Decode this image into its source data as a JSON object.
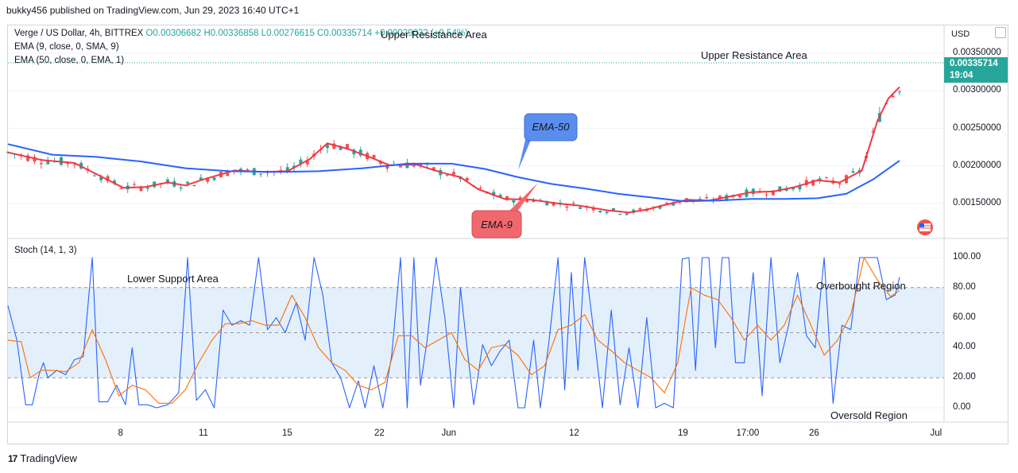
{
  "header": {
    "published": "bukky456 published on TradingView.com, Jun 29, 2023 16:40 UTC+1"
  },
  "legend": {
    "symbol": "Verge / US Dollar, 4h, BITTREX",
    "ohlc": "O0.00306682 H0.00336858 L0.00276615 C0.00335714 +0.00029032 (+9.54%)",
    "ema9": "EMA (9, close, 0, SMA, 9)",
    "ema50": "EMA (50, close, 0, EMA, 1)",
    "stoch": "Stoch (14, 1, 3)"
  },
  "annotations": {
    "upper_resistance_1": "Upper Resistance Area",
    "upper_resistance_2": "Upper Resistance Area",
    "lower_support": "Lower Support Area",
    "overbought": "Overbought Region",
    "oversold": "Oversold Region",
    "callout_ema50": "EMA-50",
    "callout_ema9": "EMA-9"
  },
  "price_axis": {
    "currency": "USD",
    "ticks": [
      "0.00350000",
      "0.00300000",
      "0.00250000",
      "0.00200000",
      "0.00150000"
    ],
    "last_price": "0.00335714",
    "countdown": "19:04"
  },
  "stoch_axis": {
    "ticks": [
      "100.00",
      "80.00",
      "60.00",
      "40.00",
      "20.00",
      "0.00"
    ]
  },
  "time_axis": {
    "labels": [
      "8",
      "11",
      "15",
      "22",
      "Jun",
      "12",
      "19",
      "17:00",
      "26",
      "Jul"
    ]
  },
  "footer": {
    "brand": "TradingView",
    "logo": "17"
  },
  "colors": {
    "up": "#26a69a",
    "down": "#ef5350",
    "ema9": "#f23645",
    "ema50": "#2962ff",
    "stoch_k": "#2962ff",
    "stoch_d": "#ff6d00",
    "band": "#e3f0fb",
    "callout_blue": "#5b8def",
    "callout_red": "#f0686e"
  },
  "chart_data": [
    {
      "type": "line",
      "title": "Verge / US Dollar, 4h, BITTREX",
      "x_unit": "bar index (4h bars, ~May 5 to Jun 29, 2023)",
      "ylim": [
        0.0011,
        0.0037
      ],
      "series": [
        {
          "name": "EMA (9, close, 0, SMA, 9)",
          "values": [
            [
              0,
              0.00218
            ],
            [
              15,
              0.00208
            ],
            [
              30,
              0.00204
            ],
            [
              42,
              0.00186
            ],
            [
              52,
              0.00171
            ],
            [
              62,
              0.00172
            ],
            [
              72,
              0.00178
            ],
            [
              80,
              0.00174
            ],
            [
              88,
              0.00182
            ],
            [
              102,
              0.00194
            ],
            [
              115,
              0.00192
            ],
            [
              126,
              0.00193
            ],
            [
              136,
              0.00209
            ],
            [
              144,
              0.0023
            ],
            [
              153,
              0.00223
            ],
            [
              163,
              0.00212
            ],
            [
              172,
              0.00201
            ],
            [
              184,
              0.00202
            ],
            [
              196,
              0.00191
            ],
            [
              204,
              0.00185
            ],
            [
              212,
              0.00169
            ],
            [
              224,
              0.00156
            ],
            [
              236,
              0.00155
            ],
            [
              248,
              0.0015
            ],
            [
              258,
              0.00147
            ],
            [
              270,
              0.00141
            ],
            [
              280,
              0.00138
            ],
            [
              288,
              0.00142
            ],
            [
              296,
              0.00148
            ],
            [
              306,
              0.00155
            ],
            [
              316,
              0.00154
            ],
            [
              325,
              0.00159
            ],
            [
              335,
              0.00165
            ],
            [
              345,
              0.00166
            ],
            [
              355,
              0.00172
            ],
            [
              365,
              0.00181
            ],
            [
              375,
              0.00178
            ],
            [
              385,
              0.00194
            ],
            [
              392,
              0.0026
            ],
            [
              397,
              0.0029
            ],
            [
              402,
              0.00305
            ]
          ]
        },
        {
          "name": "EMA (50, close, 0, EMA, 1)",
          "values": [
            [
              0,
              0.00229
            ],
            [
              20,
              0.00215
            ],
            [
              40,
              0.00212
            ],
            [
              60,
              0.00206
            ],
            [
              80,
              0.00197
            ],
            [
              100,
              0.00193
            ],
            [
              120,
              0.00192
            ],
            [
              140,
              0.00193
            ],
            [
              160,
              0.00197
            ],
            [
              180,
              0.00203
            ],
            [
              200,
              0.00203
            ],
            [
              215,
              0.00196
            ],
            [
              230,
              0.00185
            ],
            [
              245,
              0.00176
            ],
            [
              260,
              0.0017
            ],
            [
              275,
              0.00163
            ],
            [
              290,
              0.00158
            ],
            [
              305,
              0.00153
            ],
            [
              320,
              0.00154
            ],
            [
              335,
              0.00156
            ],
            [
              350,
              0.00156
            ],
            [
              365,
              0.00157
            ],
            [
              378,
              0.00163
            ],
            [
              390,
              0.00182
            ],
            [
              402,
              0.00207
            ]
          ]
        }
      ]
    },
    {
      "type": "line",
      "title": "Stoch (14, 1, 3)",
      "ylim": [
        0,
        100
      ],
      "reference_lines": [
        80,
        50,
        20
      ],
      "series": [
        {
          "name": "%K",
          "values": [
            [
              0,
              68
            ],
            [
              4,
              45
            ],
            [
              8,
              2
            ],
            [
              11,
              2
            ],
            [
              14,
              22
            ],
            [
              16,
              30
            ],
            [
              18,
              20
            ],
            [
              22,
              25
            ],
            [
              26,
              22
            ],
            [
              30,
              32
            ],
            [
              34,
              34
            ],
            [
              38,
              100
            ],
            [
              41,
              4
            ],
            [
              45,
              4
            ],
            [
              49,
              15
            ],
            [
              53,
              2
            ],
            [
              56,
              40
            ],
            [
              59,
              2
            ],
            [
              63,
              2
            ],
            [
              67,
              0
            ],
            [
              72,
              2
            ],
            [
              77,
              10
            ],
            [
              81,
              100
            ],
            [
              85,
              5
            ],
            [
              89,
              12
            ],
            [
              93,
              0
            ],
            [
              97,
              65
            ],
            [
              101,
              55
            ],
            [
              105,
              58
            ],
            [
              109,
              55
            ],
            [
              113,
              100
            ],
            [
              117,
              52
            ],
            [
              121,
              60
            ],
            [
              125,
              50
            ],
            [
              130,
              70
            ],
            [
              134,
              45
            ],
            [
              138,
              100
            ],
            [
              142,
              75
            ],
            [
              146,
              30
            ],
            [
              150,
              20
            ],
            [
              154,
              0
            ],
            [
              158,
              18
            ],
            [
              161,
              0
            ],
            [
              165,
              28
            ],
            [
              169,
              0
            ],
            [
              173,
              35
            ],
            [
              177,
              100
            ],
            [
              180,
              0
            ],
            [
              183,
              100
            ],
            [
              186,
              15
            ],
            [
              189,
              45
            ],
            [
              193,
              100
            ],
            [
              197,
              60
            ],
            [
              201,
              0
            ],
            [
              204,
              80
            ],
            [
              207,
              40
            ],
            [
              210,
              2
            ],
            [
              214,
              42
            ],
            [
              218,
              28
            ],
            [
              222,
              38
            ],
            [
              226,
              45
            ],
            [
              230,
              0
            ],
            [
              233,
              0
            ],
            [
              237,
              45
            ],
            [
              240,
              0
            ],
            [
              244,
              45
            ],
            [
              248,
              100
            ],
            [
              251,
              12
            ],
            [
              254,
              90
            ],
            [
              257,
              25
            ],
            [
              260,
              100
            ],
            [
              264,
              52
            ],
            [
              268,
              0
            ],
            [
              272,
              65
            ],
            [
              276,
              2
            ],
            [
              280,
              40
            ],
            [
              284,
              0
            ],
            [
              288,
              60
            ],
            [
              292,
              0
            ],
            [
              296,
              3
            ],
            [
              300,
              0
            ],
            [
              304,
              99
            ],
            [
              307,
              100
            ],
            [
              310,
              25
            ],
            [
              313,
              100
            ],
            [
              316,
              100
            ],
            [
              319,
              40
            ],
            [
              322,
              100
            ],
            [
              325,
              100
            ],
            [
              328,
              30
            ],
            [
              332,
              30
            ],
            [
              336,
              90
            ],
            [
              340,
              8
            ],
            [
              344,
              100
            ],
            [
              348,
              30
            ],
            [
              352,
              55
            ],
            [
              356,
              90
            ],
            [
              360,
              48
            ],
            [
              364,
              40
            ],
            [
              368,
              100
            ],
            [
              372,
              3
            ],
            [
              376,
              55
            ],
            [
              380,
              52
            ],
            [
              384,
              100
            ],
            [
              388,
              100
            ],
            [
              392,
              100
            ],
            [
              396,
              72
            ],
            [
              400,
              75
            ],
            [
              402,
              87
            ]
          ]
        },
        {
          "name": "%D",
          "values": [
            [
              0,
              45
            ],
            [
              6,
              44
            ],
            [
              10,
              20
            ],
            [
              15,
              25
            ],
            [
              20,
              25
            ],
            [
              26,
              24
            ],
            [
              32,
              30
            ],
            [
              38,
              52
            ],
            [
              44,
              32
            ],
            [
              50,
              8
            ],
            [
              56,
              15
            ],
            [
              62,
              12
            ],
            [
              68,
              3
            ],
            [
              74,
              3
            ],
            [
              80,
              12
            ],
            [
              86,
              30
            ],
            [
              92,
              45
            ],
            [
              98,
              56
            ],
            [
              104,
              56
            ],
            [
              110,
              58
            ],
            [
              116,
              55
            ],
            [
              122,
              55
            ],
            [
              128,
              75
            ],
            [
              134,
              60
            ],
            [
              140,
              40
            ],
            [
              146,
              30
            ],
            [
              152,
              25
            ],
            [
              158,
              15
            ],
            [
              164,
              12
            ],
            [
              170,
              17
            ],
            [
              176,
              48
            ],
            [
              182,
              48
            ],
            [
              188,
              40
            ],
            [
              194,
              45
            ],
            [
              200,
              50
            ],
            [
              206,
              32
            ],
            [
              212,
              25
            ],
            [
              218,
              40
            ],
            [
              224,
              42
            ],
            [
              230,
              35
            ],
            [
              236,
              22
            ],
            [
              242,
              28
            ],
            [
              248,
              52
            ],
            [
              254,
              55
            ],
            [
              260,
              62
            ],
            [
              266,
              45
            ],
            [
              272,
              38
            ],
            [
              278,
              30
            ],
            [
              284,
              25
            ],
            [
              290,
              20
            ],
            [
              296,
              10
            ],
            [
              302,
              30
            ],
            [
              308,
              80
            ],
            [
              314,
              75
            ],
            [
              320,
              72
            ],
            [
              326,
              60
            ],
            [
              332,
              45
            ],
            [
              338,
              55
            ],
            [
              344,
              45
            ],
            [
              350,
              55
            ],
            [
              356,
              75
            ],
            [
              362,
              55
            ],
            [
              368,
              35
            ],
            [
              374,
              45
            ],
            [
              380,
              62
            ],
            [
              386,
              100
            ],
            [
              392,
              85
            ],
            [
              398,
              74
            ],
            [
              402,
              78
            ]
          ]
        }
      ]
    }
  ]
}
